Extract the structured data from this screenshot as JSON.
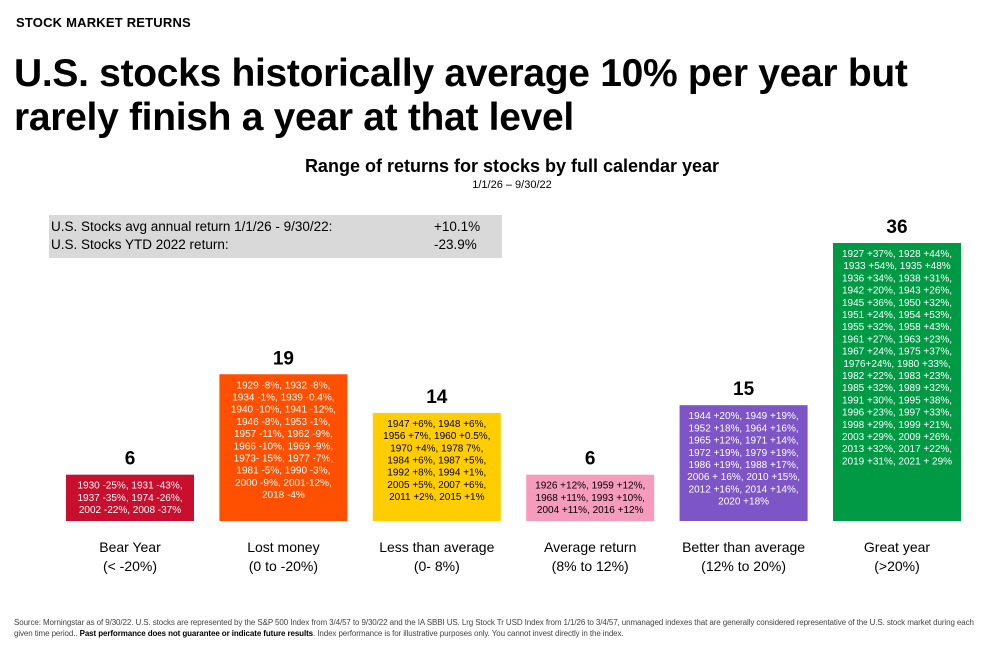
{
  "kicker": "STOCK MARKET RETURNS",
  "headline": "U.S. stocks historically average 10% per year but rarely finish a year at that level",
  "info_box": [
    {
      "label": "U.S. Stocks avg annual return 1/1/26 - 9/30/22:",
      "value": "+10.1%"
    },
    {
      "label": "U.S. Stocks YTD 2022 return:",
      "value": "-23.9%"
    }
  ],
  "footer": {
    "text_1": "Source: Morningstar as of 9/30/22. U.S. stocks are represented by the S&P 500 Index from 3/4/57 to 9/30/22 and the IA SBBI US. Lrg Stock Tr USD Index from 1/1/26 to 3/4/57, unmanaged indexes that are generally considered representative of the U.S. stock market during each given time period..",
    "bold": "Past performance does not guarantee or indicate future results",
    "text_2": ". Index performance is for illustrative purposes only. You cannot invest directly in the index."
  },
  "chart_data": {
    "type": "bar",
    "title": "Range of returns for stocks by full calendar year",
    "subtitle": "1/1/26 – 9/30/22",
    "ylim": [
      0,
      36
    ],
    "categories": [
      {
        "line1": "Bear Year",
        "line2": "(< -20%)",
        "value": 6,
        "color": "#c8102e",
        "years": [
          "1930 -25%, 1931 -43%,",
          "1937 -35%, 1974 -26%,",
          "2002 -22%, 2008 -37%"
        ]
      },
      {
        "line1": "Lost money",
        "line2": "(0 to -20%)",
        "value": 19,
        "color": "#fe5000",
        "years": [
          "1929 -8%, 1932 -8%,",
          "1934 -1%, 1939 -0.4%,",
          "1940 -10%, 1941 -12%,",
          "1946 -8%, 1953 -1%,",
          "1957 -11%, 1962 -9%,",
          "1966 -10%, 1969 -9%,",
          "1973- 15%, 1977 -7%,",
          "1981 -5%, 1990 -3%,",
          "2000 -9%, 2001-12%,",
          "2018 -4%"
        ]
      },
      {
        "line1": "Less than average",
        "line2": "(0- 8%)",
        "value": 14,
        "color": "#ffcd00",
        "years": [
          "1947 +6%, 1948 +6%,",
          "1956 +7%, 1960 +0.5%,",
          "1970 +4%, 1978 7%,",
          "1984 +6%, 1987 +5%,",
          "1992 +8%, 1994 +1%,",
          "2005 +5%, 2007 +6%,",
          "2011 +2%, 2015 +1%"
        ]
      },
      {
        "line1": "Average return",
        "line2": "(8% to 12%)",
        "value": 6,
        "color": "#f59bbb",
        "years": [
          "1926 +12%, 1959 +12%,",
          "1968 +11%, 1993 +10%,",
          "2004 +11%, 2016 +12%"
        ]
      },
      {
        "line1": "Better than average",
        "line2": "(12% to 20%)",
        "value": 15,
        "color": "#7d55c7",
        "years": [
          "1944 +20%, 1949 +19%,",
          "1952 +18%, 1964 +16%,",
          "1965 +12%, 1971 +14%,",
          "1972 +19%, 1979 +19%,",
          "1986 +19%, 1988 +17%,",
          "2006 + 16%, 2010 +15%,",
          "2012 +16%, 2014 +14%,",
          "2020 +18%"
        ]
      },
      {
        "line1": "Great year",
        "line2": "(>20%)",
        "value": 36,
        "color": "#009a44",
        "years": [
          "1927 +37%, 1928 +44%,",
          "1933 +54%, 1935 +48%",
          "1936 +34%, 1938 +31%,",
          "1942 +20%, 1943 +26%,",
          "1945 +36%, 1950 +32%,",
          "1951 +24%, 1954 +53%,",
          "1955 +32%, 1958 +43%,",
          "1961 +27%, 1963 +23%,",
          "1967 +24%, 1975 +37%,",
          "1976+24%, 1980 +33%,",
          "1982 +22%, 1983 +23%,",
          "1985 +32%, 1989 +32%,",
          "1991 +30%, 1995 +38%,",
          "1996 +23%, 1997 +33%,",
          "1998 +29%, 1999 +21%,",
          "2003 +29%, 2009 +26%,",
          "2013 +32%, 2017 +22%,",
          "2019 +31%, 2021 + 29%"
        ]
      }
    ]
  }
}
